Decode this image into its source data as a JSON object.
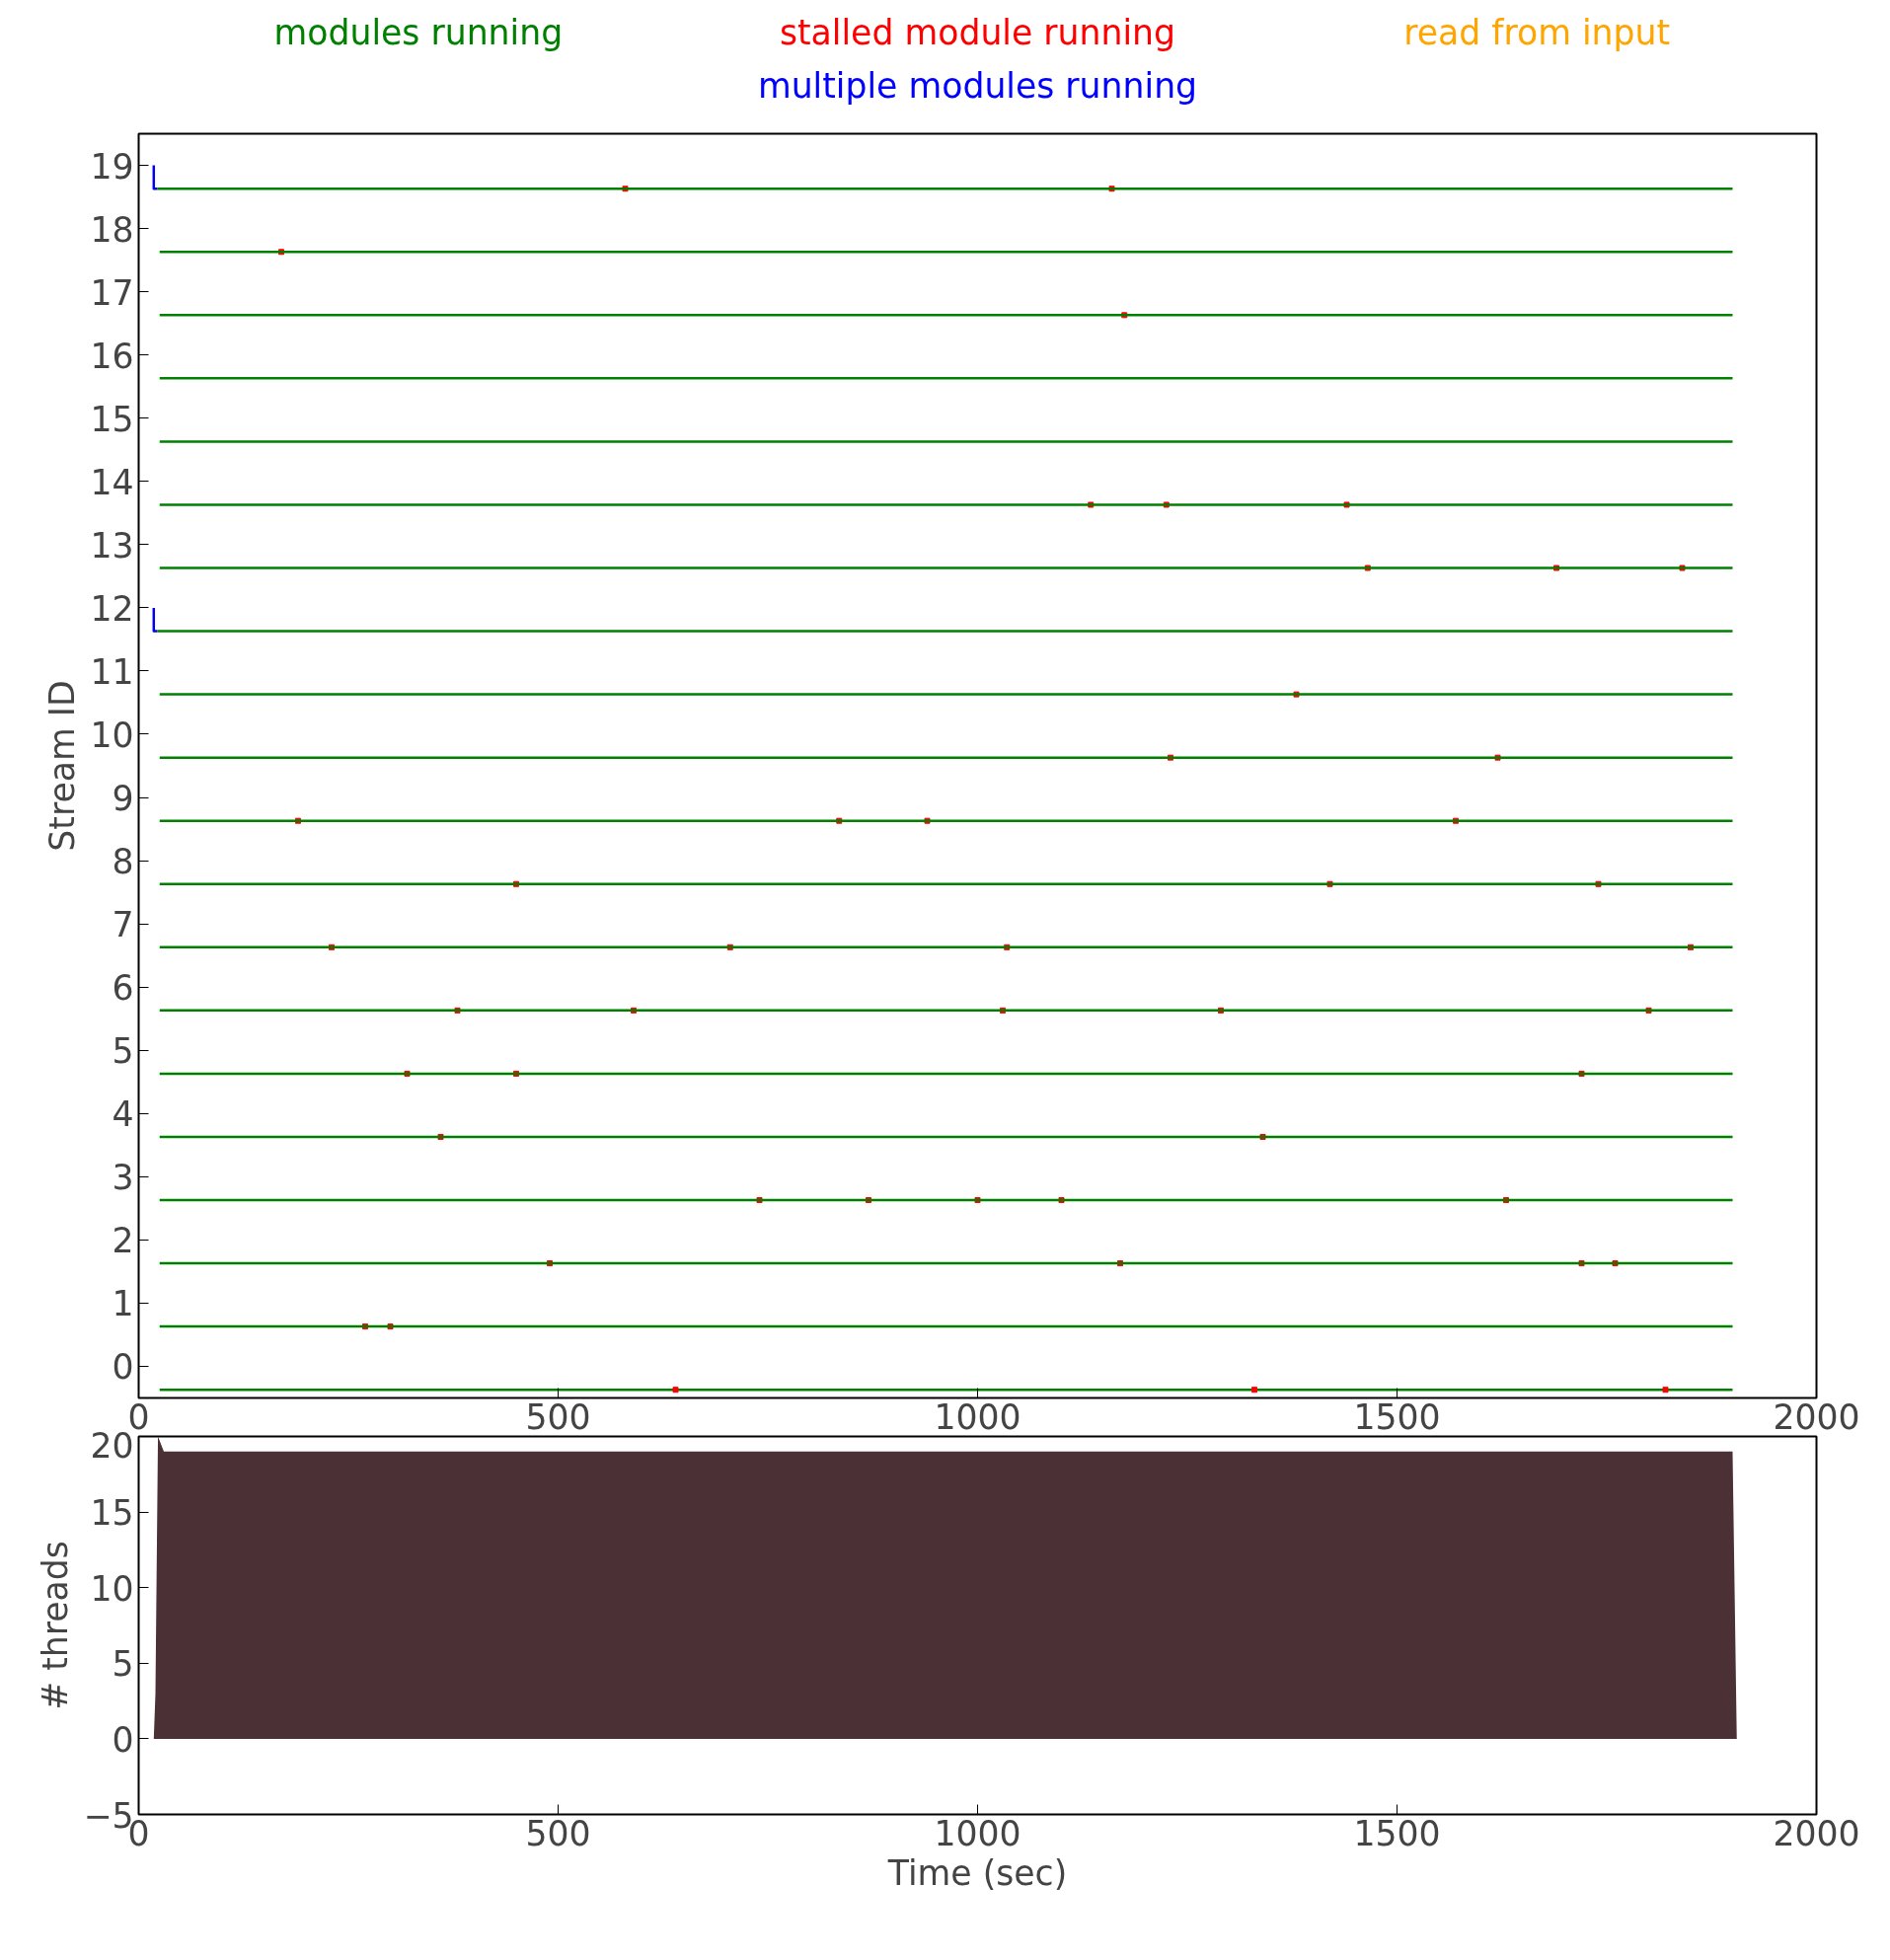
{
  "chart_data": [
    {
      "type": "line",
      "ylabel": "Stream ID",
      "legend": "top",
      "marker": "none",
      "line_style": "solid",
      "grid": false,
      "xlim": [
        0,
        2000
      ],
      "xticks": [
        0,
        500,
        1000,
        1500,
        2000
      ],
      "ylim": [
        -0.5,
        19.5
      ],
      "yticks": [
        0,
        1,
        2,
        3,
        4,
        5,
        6,
        7,
        8,
        9,
        10,
        11,
        12,
        13,
        14,
        15,
        16,
        17,
        18,
        19
      ],
      "series": [
        {
          "name": "modules running",
          "color": "#008000",
          "x": [
            25,
            1900
          ],
          "values": [
            -0.37,
            -0.37
          ]
        },
        {
          "name": "stalled module running",
          "color": "#ff0000",
          "type": "scatter",
          "marker": "square",
          "x": [
            640,
            1820,
            1330,
            270,
            300,
            490,
            1170,
            1720,
            1760,
            740,
            870,
            1000,
            1100,
            1630,
            360,
            1340,
            320,
            450,
            1720,
            380,
            590,
            1030,
            1290,
            1800,
            230,
            705,
            1035,
            1850,
            450,
            1420,
            1740,
            190,
            835,
            940,
            1570,
            1620,
            1230,
            1380,
            1465,
            1690,
            1840,
            1135,
            1225,
            1440,
            1175,
            170,
            1160,
            580
          ],
          "values": [
            -0.37,
            -0.37,
            -0.37,
            0.63,
            0.63,
            1.63,
            1.63,
            1.63,
            1.63,
            2.63,
            2.63,
            2.63,
            2.63,
            2.63,
            3.63,
            3.63,
            4.63,
            4.63,
            4.63,
            5.63,
            5.63,
            5.63,
            5.63,
            5.63,
            6.63,
            6.63,
            6.63,
            6.63,
            7.63,
            7.63,
            7.63,
            8.63,
            8.63,
            8.63,
            8.63,
            9.63,
            9.63,
            10.63,
            12.63,
            12.63,
            12.63,
            13.63,
            13.63,
            13.63,
            16.63,
            17.63,
            18.63,
            18.63
          ]
        },
        {
          "name": "multiple modules running",
          "color": "#0000ff",
          "x": [
            18,
            18,
            22
          ],
          "values": [
            19,
            18.63,
            18.63
          ]
        },
        {
          "name": "read from input",
          "color": "#ffa500"
        },
        {
          "color": "#0000ff",
          "x": [
            18,
            18,
            22
          ],
          "values": [
            12,
            11.63,
            11.63
          ]
        },
        {
          "color": "#008000",
          "x": [
            25,
            1900
          ],
          "values": [
            0.63,
            0.63
          ]
        },
        {
          "color": "#008000",
          "x": [
            25,
            1900
          ],
          "values": [
            1.63,
            1.63
          ]
        },
        {
          "color": "#008000",
          "x": [
            25,
            1900
          ],
          "values": [
            2.63,
            2.63
          ]
        },
        {
          "color": "#008000",
          "x": [
            25,
            1900
          ],
          "values": [
            3.63,
            3.63
          ]
        },
        {
          "color": "#008000",
          "x": [
            25,
            1900
          ],
          "values": [
            4.63,
            4.63
          ]
        },
        {
          "color": "#008000",
          "x": [
            25,
            1900
          ],
          "values": [
            5.63,
            5.63
          ]
        },
        {
          "color": "#008000",
          "x": [
            25,
            1900
          ],
          "values": [
            6.63,
            6.63
          ]
        },
        {
          "color": "#008000",
          "x": [
            25,
            1900
          ],
          "values": [
            7.63,
            7.63
          ]
        },
        {
          "color": "#008000",
          "x": [
            25,
            1900
          ],
          "values": [
            8.63,
            8.63
          ]
        },
        {
          "color": "#008000",
          "x": [
            25,
            1900
          ],
          "values": [
            9.63,
            9.63
          ]
        },
        {
          "color": "#008000",
          "x": [
            25,
            1900
          ],
          "values": [
            10.63,
            10.63
          ]
        },
        {
          "color": "#008000",
          "x": [
            22,
            1900
          ],
          "values": [
            11.63,
            11.63
          ]
        },
        {
          "color": "#008000",
          "x": [
            25,
            1900
          ],
          "values": [
            12.63,
            12.63
          ]
        },
        {
          "color": "#008000",
          "x": [
            25,
            1900
          ],
          "values": [
            13.63,
            13.63
          ]
        },
        {
          "color": "#008000",
          "x": [
            25,
            1900
          ],
          "values": [
            14.63,
            14.63
          ]
        },
        {
          "color": "#008000",
          "x": [
            25,
            1900
          ],
          "values": [
            15.63,
            15.63
          ]
        },
        {
          "color": "#008000",
          "x": [
            25,
            1900
          ],
          "values": [
            16.63,
            16.63
          ]
        },
        {
          "color": "#008000",
          "x": [
            25,
            1900
          ],
          "values": [
            17.63,
            17.63
          ]
        },
        {
          "color": "#008000",
          "x": [
            22,
            1900
          ],
          "values": [
            18.63,
            18.63
          ]
        }
      ]
    },
    {
      "type": "area",
      "xlabel": "Time (sec)",
      "ylabel": "# threads",
      "grid": false,
      "xlim": [
        0,
        2000
      ],
      "xticks": [
        0,
        500,
        1000,
        1500,
        2000
      ],
      "ylim": [
        -5,
        20
      ],
      "yticks": [
        {
          "value": -5,
          "label": "−5"
        },
        0,
        5,
        10,
        15,
        20
      ],
      "series": [
        {
          "color": "#4b3036",
          "x": [
            18,
            20,
            23,
            30,
            1895,
            1900,
            1905
          ],
          "values": [
            0,
            3,
            20,
            19,
            19,
            19,
            0
          ]
        }
      ]
    }
  ]
}
